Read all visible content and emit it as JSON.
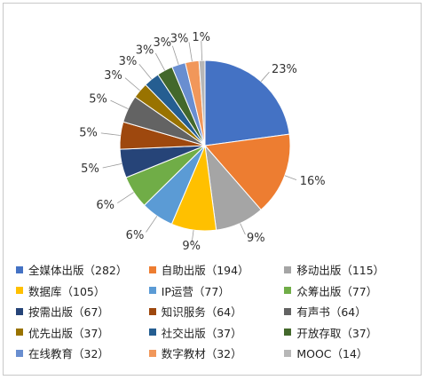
{
  "chart_data": {
    "type": "pie",
    "slices": [
      {
        "name": "全媒体出版",
        "count": "282",
        "pct_label": "23%",
        "color": "#4472c4"
      },
      {
        "name": "自助出版",
        "count": "194",
        "pct_label": "16%",
        "color": "#ed7d31"
      },
      {
        "name": "移动出版",
        "count": "115",
        "pct_label": "9%",
        "color": "#a5a5a5"
      },
      {
        "name": "数据库",
        "count": "105",
        "pct_label": "9%",
        "color": "#ffc000"
      },
      {
        "name": "IP运营",
        "count": "77",
        "pct_label": "6%",
        "color": "#5b9bd5"
      },
      {
        "name": "众筹出版",
        "count": "77",
        "pct_label": "6%",
        "color": "#70ad47"
      },
      {
        "name": "按需出版",
        "count": "67",
        "pct_label": "5%",
        "color": "#264478"
      },
      {
        "name": "知识服务",
        "count": "64",
        "pct_label": "5%",
        "color": "#9e480e"
      },
      {
        "name": "有声书",
        "count": "64",
        "pct_label": "5%",
        "color": "#636363"
      },
      {
        "name": "优先出版",
        "count": "37",
        "pct_label": "3%",
        "color": "#997300"
      },
      {
        "name": "社交出版",
        "count": "37",
        "pct_label": "3%",
        "color": "#255e91"
      },
      {
        "name": "开放存取",
        "count": "37",
        "pct_label": "3%",
        "color": "#43682b"
      },
      {
        "name": "在线教育",
        "count": "32",
        "pct_label": "3%",
        "color": "#698ed0"
      },
      {
        "name": "数字教材",
        "count": "32",
        "pct_label": "3%",
        "color": "#f1975a"
      },
      {
        "name": "MOOC",
        "count": "14",
        "pct_label": "1%",
        "color": "#b7b7b7"
      }
    ],
    "legend_position": "bottom",
    "legend_columns": 3
  }
}
